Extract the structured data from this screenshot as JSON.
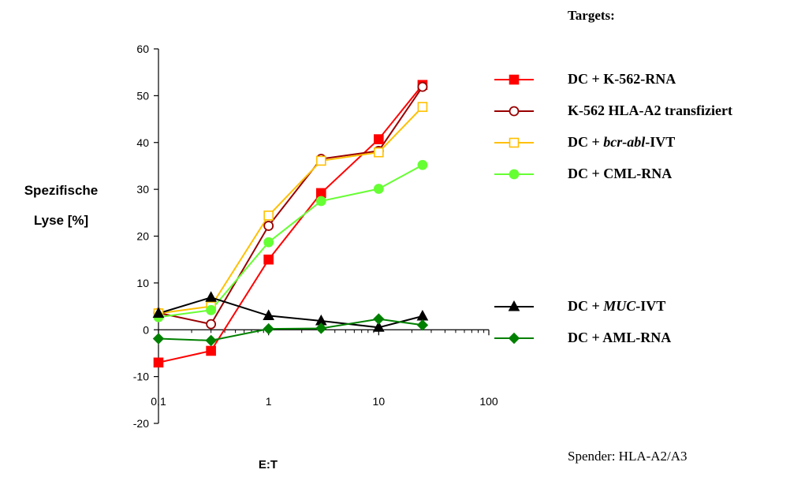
{
  "chart_data": {
    "type": "line",
    "xscale": "log",
    "xlim": [
      0.1,
      100
    ],
    "ylim": [
      -20,
      60
    ],
    "xlabel": "E:T",
    "ylabel_lines": [
      "Spezifische",
      "Lyse [%]"
    ],
    "yticks": [
      -20,
      -10,
      0,
      10,
      20,
      30,
      40,
      50,
      60
    ],
    "xticks": [
      {
        "value": 0.1,
        "label": "0,1"
      },
      {
        "value": 1,
        "label": "1"
      },
      {
        "value": 10,
        "label": "10"
      },
      {
        "value": 100,
        "label": "100"
      }
    ],
    "legend_title": "Targets:",
    "series": [
      {
        "name_parts": [
          {
            "t": "DC + K-562-RNA"
          }
        ],
        "color": "#ff0000",
        "marker": "square-filled",
        "x": [
          0.1,
          0.3,
          1,
          3,
          10,
          25
        ],
        "y": [
          -7,
          -4.5,
          15,
          29.2,
          40.7,
          52.3
        ]
      },
      {
        "name_parts": [
          {
            "t": "K-562 HLA-A2 transfiziert"
          }
        ],
        "color": "#990000",
        "marker": "circle-open",
        "x": [
          0.1,
          0.3,
          1,
          3,
          10,
          25
        ],
        "y": [
          3.6,
          1.2,
          22.2,
          36.5,
          38.2,
          51.9
        ]
      },
      {
        "name_parts": [
          {
            "t": "DC + "
          },
          {
            "t": "bcr-abl",
            "i": true
          },
          {
            "t": "-IVT"
          }
        ],
        "color": "#ffc000",
        "marker": "square-open",
        "x": [
          0.1,
          0.3,
          1,
          3,
          10,
          25
        ],
        "y": [
          3.5,
          5.0,
          24.4,
          36.1,
          37.9,
          47.6
        ]
      },
      {
        "name_parts": [
          {
            "t": "DC + CML-RNA"
          }
        ],
        "color": "#66ff33",
        "marker": "circle-filled",
        "x": [
          0.1,
          0.3,
          1,
          3,
          10,
          25
        ],
        "y": [
          2.7,
          4.2,
          18.7,
          27.5,
          30.1,
          35.2
        ]
      },
      {
        "name_parts": [
          {
            "t": "DC + "
          },
          {
            "t": "MUC",
            "i": true
          },
          {
            "t": "-IVT"
          }
        ],
        "color": "#000000",
        "marker": "triangle-filled",
        "x": [
          0.1,
          0.3,
          1,
          3,
          10,
          25
        ],
        "y": [
          3.5,
          6.9,
          3.0,
          1.9,
          0.5,
          2.9
        ]
      },
      {
        "name_parts": [
          {
            "t": "DC + AML-RNA"
          }
        ],
        "color": "#008000",
        "marker": "diamond-filled",
        "x": [
          0.1,
          0.3,
          1,
          3,
          10,
          25
        ],
        "y": [
          -1.9,
          -2.3,
          0.2,
          0.3,
          2.3,
          1.0
        ]
      }
    ],
    "annotation": "Spender: HLA-A2/A3"
  }
}
